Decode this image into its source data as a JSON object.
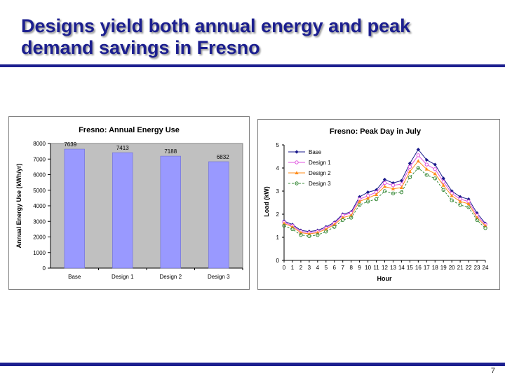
{
  "slide": {
    "title_line1": "Designs yield both annual energy and peak",
    "title_line2": "demand savings in Fresno",
    "page_number": "7",
    "accent_color": "#1c1f8f"
  },
  "chart_data": [
    {
      "type": "bar",
      "title": "Fresno: Annual Energy Use",
      "ylabel": "Annual Energy Use (kWh/yr)",
      "xlabel": "",
      "categories": [
        "Base",
        "Design 1",
        "Design 2",
        "Design 3"
      ],
      "values": [
        7639,
        7413,
        7188,
        6832
      ],
      "data_labels": [
        "7639",
        "7413",
        "7188",
        "6832"
      ],
      "ylim": [
        0,
        8000
      ],
      "yticks": [
        0,
        1000,
        2000,
        3000,
        4000,
        5000,
        6000,
        7000,
        8000
      ],
      "bar_color": "#9999ff",
      "plot_background": "#c0c0c0",
      "grid": false
    },
    {
      "type": "line",
      "title": "Fresno: Peak Day in July",
      "xlabel": "Hour",
      "ylabel": "Load (kW)",
      "x": [
        0,
        1,
        2,
        3,
        4,
        5,
        6,
        7,
        8,
        9,
        10,
        11,
        12,
        13,
        14,
        15,
        16,
        17,
        18,
        19,
        20,
        21,
        22,
        23,
        24
      ],
      "xlim": [
        0,
        24
      ],
      "ylim": [
        0,
        5
      ],
      "yticks": [
        0,
        1,
        2,
        3,
        4,
        5
      ],
      "legend_position": "top-left",
      "grid": false,
      "series": [
        {
          "name": "Base",
          "color": "#1a1a8c",
          "marker": "diamond",
          "dash": "solid",
          "values": [
            1.7,
            1.55,
            1.3,
            1.25,
            1.3,
            1.45,
            1.65,
            2.0,
            2.1,
            2.75,
            2.95,
            3.05,
            3.5,
            3.35,
            3.45,
            4.2,
            4.8,
            4.35,
            4.15,
            3.55,
            3.0,
            2.75,
            2.65,
            2.05,
            1.6
          ]
        },
        {
          "name": "Design 1",
          "color": "#e055e0",
          "marker": "circle",
          "dash": "solid",
          "values": [
            1.65,
            1.5,
            1.25,
            1.2,
            1.25,
            1.4,
            1.6,
            1.95,
            2.05,
            2.65,
            2.8,
            2.95,
            3.35,
            3.25,
            3.3,
            4.05,
            4.55,
            4.15,
            3.95,
            3.4,
            2.9,
            2.65,
            2.55,
            1.95,
            1.55
          ]
        },
        {
          "name": "Design 2",
          "color": "#ff8c1a",
          "marker": "triangle",
          "dash": "solid",
          "values": [
            1.6,
            1.45,
            1.2,
            1.15,
            1.2,
            1.35,
            1.55,
            1.85,
            1.95,
            2.55,
            2.7,
            2.85,
            3.2,
            3.1,
            3.15,
            3.85,
            4.3,
            3.95,
            3.75,
            3.25,
            2.8,
            2.55,
            2.45,
            1.85,
            1.5
          ]
        },
        {
          "name": "Design 3",
          "color": "#3c8c3c",
          "marker": "circle-open",
          "dash": "dashed",
          "values": [
            1.5,
            1.35,
            1.1,
            1.05,
            1.1,
            1.25,
            1.45,
            1.75,
            1.85,
            2.4,
            2.55,
            2.65,
            3.0,
            2.9,
            2.95,
            3.6,
            4.0,
            3.7,
            3.55,
            3.05,
            2.6,
            2.4,
            2.3,
            1.75,
            1.4
          ]
        }
      ]
    }
  ]
}
